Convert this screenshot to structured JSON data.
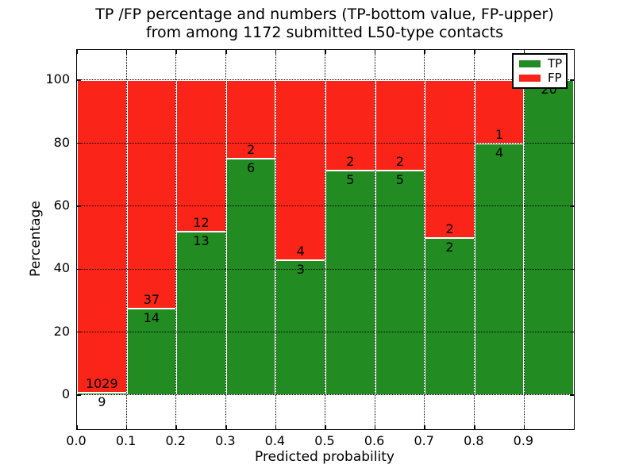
{
  "chart_data": {
    "type": "bar",
    "stacked": true,
    "normalized": "percent",
    "title": "TP /FP percentage and numbers (TP-bottom value, FP-upper)\nfrom among 1172 submitted L50-type contacts",
    "title_line1": "TP /FP percentage and numbers (TP-bottom value, FP-upper)",
    "title_line2": "from among 1172 submitted L50-type contacts",
    "xlabel": "Predicted probability",
    "ylabel": "Percentage",
    "x_bin_start": [
      0.0,
      0.1,
      0.2,
      0.3,
      0.4,
      0.5,
      0.6,
      0.7,
      0.8,
      0.9
    ],
    "bin_width": 0.1,
    "xtick_labels": [
      "0.0",
      "0.1",
      "0.2",
      "0.3",
      "0.4",
      "0.5",
      "0.6",
      "0.7",
      "0.8",
      "0.9"
    ],
    "yticks": [
      0,
      20,
      40,
      60,
      80,
      100
    ],
    "ytick_labels": [
      "0",
      "20",
      "40",
      "60",
      "80",
      "100"
    ],
    "xlim": [
      0.0,
      1.0
    ],
    "ylim": [
      -10.8,
      109.6
    ],
    "series": [
      {
        "name": "TP",
        "color": "#228b22",
        "values": [
          9,
          14,
          13,
          6,
          3,
          5,
          5,
          2,
          4,
          20
        ],
        "position": "bottom"
      },
      {
        "name": "FP",
        "color": "#fa2518",
        "values": [
          1029,
          37,
          12,
          2,
          4,
          2,
          2,
          2,
          1,
          0
        ],
        "position": "top"
      }
    ],
    "legend": {
      "position": "upper right",
      "entries": [
        {
          "label": "TP",
          "color": "#228b22"
        },
        {
          "label": "FP",
          "color": "#fa2518"
        }
      ]
    },
    "grid": {
      "on": true,
      "linestyle": "dotted",
      "color": "#000000"
    },
    "bar_edge_color": "#ffffff",
    "text_color": "#000000",
    "background_color": "#ffffff"
  }
}
